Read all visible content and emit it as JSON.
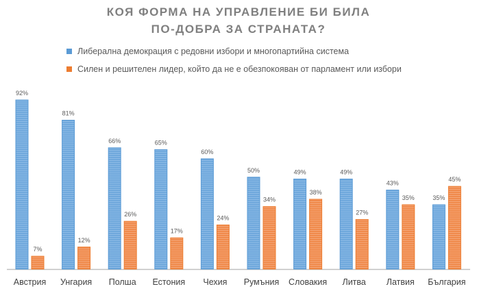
{
  "chart_data": {
    "type": "bar",
    "title": [
      "КОЯ ФОРМА НА УПРАВЛЕНИЕ БИ БИЛА",
      "ПО-ДОБРА ЗА СТРАНАТА?"
    ],
    "categories": [
      "Австрия",
      "Унгария",
      "Полша",
      "Естония",
      "Чехия",
      "Румъния",
      "Словакия",
      "Литва",
      "Латвия",
      "България"
    ],
    "series": [
      {
        "name": "Либерална демокрация с редовни избори и многопартийна система",
        "color": "#5B9BD5",
        "values": [
          92,
          81,
          66,
          65,
          60,
          50,
          49,
          49,
          43,
          35
        ]
      },
      {
        "name": "Силен и решителен лидер, който да не е обезпокояван от парламент или избори",
        "color": "#ED7D31",
        "values": [
          7,
          12,
          26,
          17,
          24,
          34,
          38,
          27,
          35,
          45
        ]
      }
    ],
    "value_suffix": "%",
    "ylim": [
      0,
      100
    ],
    "grid": false,
    "legend_position": "top"
  }
}
